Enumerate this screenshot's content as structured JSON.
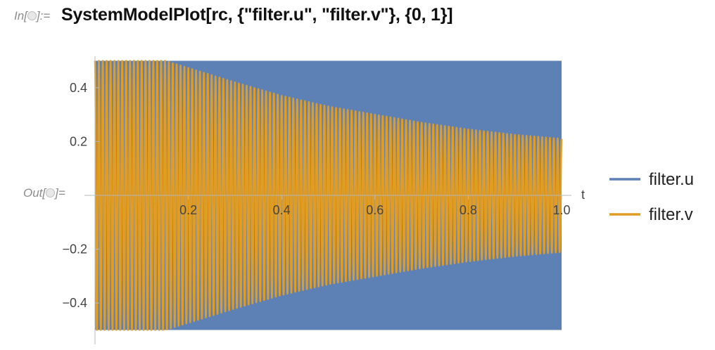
{
  "notebook": {
    "in_prefix": "In[",
    "in_suffix": "]:=",
    "out_prefix": "Out[",
    "out_suffix": "]=",
    "input_code": "SystemModelPlot[rc, {\"filter.u\", \"filter.v\"}, {0,  1}]"
  },
  "chart_data": {
    "type": "line",
    "xlabel": "t",
    "ylabel": "",
    "xlim": [
      0,
      1
    ],
    "ylim": [
      -0.52,
      0.52
    ],
    "x_ticks": [
      0.2,
      0.4,
      0.6,
      0.8,
      1.0
    ],
    "x_tick_labels": [
      "0.2",
      "0.4",
      "0.6",
      "0.8",
      "1.0"
    ],
    "y_ticks": [
      0.4,
      0.2,
      -0.2,
      -0.4
    ],
    "y_tick_labels": [
      "0.4",
      "0.2",
      "−0.2",
      "−0.4"
    ],
    "legend_position": "right",
    "series": [
      {
        "name": "filter.u",
        "color": "#5e81b5",
        "description_values": "square wave alternating between 0.5 and -0.5",
        "high": 0.5,
        "low": -0.5,
        "envelope_t": [
          0,
          1
        ],
        "envelope_amp": [
          0.5,
          0.5
        ]
      },
      {
        "name": "filter.v",
        "color": "#e19c24",
        "description_values": "oscillating response with decaying envelope",
        "envelope_t": [
          0,
          0.15,
          0.3,
          0.4,
          0.5,
          0.6,
          0.7,
          0.8,
          0.9,
          1.0
        ],
        "envelope_amp": [
          0.5,
          0.5,
          0.42,
          0.37,
          0.33,
          0.3,
          0.27,
          0.245,
          0.225,
          0.21
        ]
      }
    ]
  }
}
